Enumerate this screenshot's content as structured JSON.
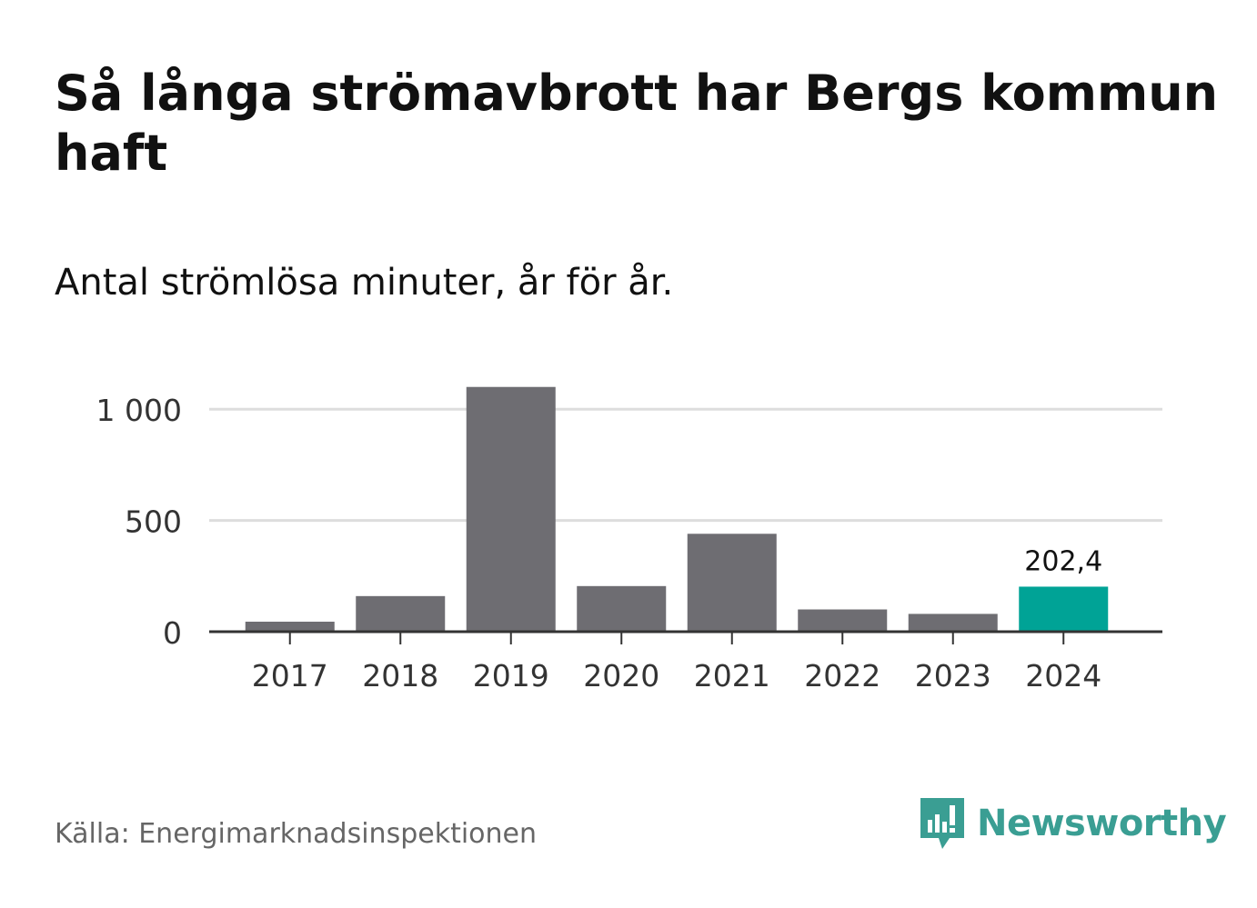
{
  "title": "Så långa strömavbrott har Bergs kommun haft",
  "subtitle": "Antal strömlösa minuter, år för år.",
  "source": "Källa: Energimarknadsinspektionen",
  "brand": {
    "name": "Newsworthy",
    "icon": "newsworthy-logo-icon",
    "color": "#3a9e93"
  },
  "colors": {
    "bar": "#6e6d72",
    "highlight": "#00a396",
    "grid": "#dddddd",
    "axis": "#333333"
  },
  "chart_data": {
    "type": "bar",
    "title": "Så långa strömavbrott har Bergs kommun haft",
    "subtitle": "Antal strömlösa minuter, år för år.",
    "xlabel": "",
    "ylabel": "",
    "categories": [
      "2017",
      "2018",
      "2019",
      "2020",
      "2021",
      "2022",
      "2023",
      "2024"
    ],
    "values": [
      45,
      160,
      1100,
      205,
      440,
      100,
      80,
      202.4
    ],
    "highlight_index": 7,
    "data_labels": [
      {
        "index": 7,
        "text": "202,4"
      }
    ],
    "ylim": [
      0,
      1100
    ],
    "yticks": [
      0,
      500,
      1000
    ],
    "ytick_labels": [
      "0",
      "500",
      "1 000"
    ],
    "grid": true
  }
}
